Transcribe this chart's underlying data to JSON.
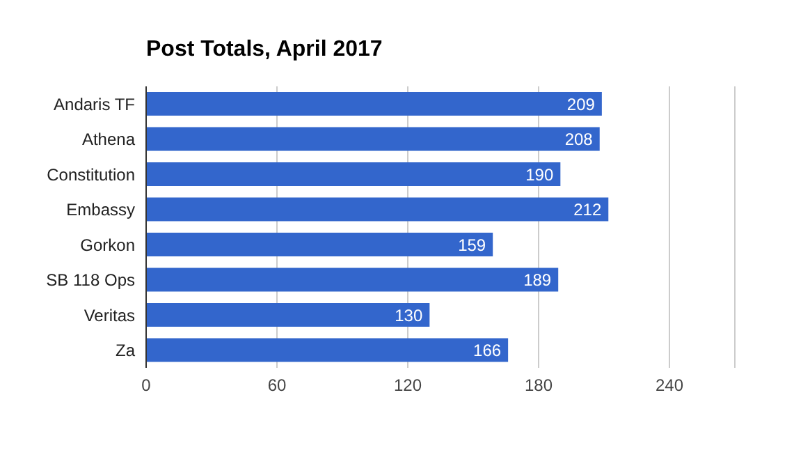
{
  "chart_data": {
    "type": "bar",
    "orientation": "horizontal",
    "title": "Post Totals, April 2017",
    "categories": [
      "Andaris TF",
      "Athena",
      "Constitution",
      "Embassy",
      "Gorkon",
      "SB 118 Ops",
      "Veritas",
      "Za"
    ],
    "values": [
      209,
      208,
      190,
      212,
      159,
      189,
      130,
      166
    ],
    "color": "#3366cc",
    "xlim": [
      0,
      270
    ],
    "xticks": [
      0,
      60,
      120,
      180,
      240
    ],
    "grid": "x",
    "data_labels": true,
    "legend": false
  }
}
